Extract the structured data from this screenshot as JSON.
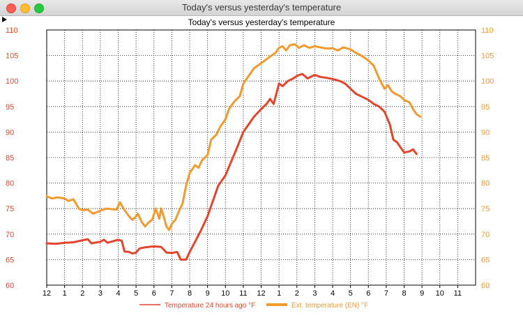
{
  "window": {
    "title": "Today's versus yesterday's temperature"
  },
  "chart_data": {
    "type": "line",
    "title": "Today's versus yesterday's temperature",
    "x_ticks": [
      "12",
      "1",
      "2",
      "3",
      "4",
      "5",
      "6",
      "7",
      "8",
      "9",
      "10",
      "11",
      "12",
      "1",
      "2",
      "3",
      "4",
      "5",
      "6",
      "7",
      "8",
      "9",
      "10",
      "11"
    ],
    "ylim": [
      60,
      110
    ],
    "y_ticks": [
      60,
      65,
      70,
      75,
      80,
      85,
      90,
      95,
      100,
      105,
      110
    ],
    "grid": true,
    "legend": "bottom",
    "series": [
      {
        "name": "Temperature 24 hours ago °F",
        "color": "#e2452d",
        "points": [
          [
            0,
            68.2
          ],
          [
            0.5,
            68.1
          ],
          [
            1,
            68.3
          ],
          [
            1.5,
            68.4
          ],
          [
            2,
            68.8
          ],
          [
            2.3,
            69.0
          ],
          [
            2.5,
            68.2
          ],
          [
            3,
            68.5
          ],
          [
            3.2,
            68.9
          ],
          [
            3.4,
            68.3
          ],
          [
            3.6,
            68.5
          ],
          [
            4,
            68.9
          ],
          [
            4.2,
            68.7
          ],
          [
            4.35,
            66.6
          ],
          [
            4.6,
            66.5
          ],
          [
            4.8,
            66.2
          ],
          [
            5,
            66.4
          ],
          [
            5.2,
            67.2
          ],
          [
            5.5,
            67.4
          ],
          [
            6,
            67.6
          ],
          [
            6.4,
            67.5
          ],
          [
            6.7,
            66.4
          ],
          [
            7,
            66.3
          ],
          [
            7.3,
            66.5
          ],
          [
            7.5,
            65.0
          ],
          [
            7.8,
            65.0
          ],
          [
            8,
            66.5
          ],
          [
            8.3,
            68.5
          ],
          [
            8.6,
            70.5
          ],
          [
            9,
            73.5
          ],
          [
            9.3,
            76.5
          ],
          [
            9.6,
            79.5
          ],
          [
            10,
            81.5
          ],
          [
            10.3,
            84.0
          ],
          [
            10.6,
            86.5
          ],
          [
            11,
            90.0
          ],
          [
            11.3,
            91.5
          ],
          [
            11.6,
            93.0
          ],
          [
            12,
            94.5
          ],
          [
            12.3,
            95.5
          ],
          [
            12.5,
            96.5
          ],
          [
            12.7,
            95.5
          ],
          [
            13,
            99.5
          ],
          [
            13.2,
            99.0
          ],
          [
            13.5,
            100.0
          ],
          [
            13.8,
            100.5
          ],
          [
            14,
            101.0
          ],
          [
            14.3,
            101.4
          ],
          [
            14.6,
            100.5
          ],
          [
            15,
            101.2
          ],
          [
            15.3,
            100.8
          ],
          [
            15.7,
            100.6
          ],
          [
            16,
            100.4
          ],
          [
            16.4,
            100.0
          ],
          [
            16.7,
            99.5
          ],
          [
            17,
            98.5
          ],
          [
            17.3,
            97.5
          ],
          [
            17.6,
            97.0
          ],
          [
            18,
            96.3
          ],
          [
            18.3,
            95.5
          ],
          [
            18.6,
            95.0
          ],
          [
            18.9,
            94.0
          ],
          [
            19.2,
            91.5
          ],
          [
            19.4,
            88.5
          ],
          [
            19.6,
            88.0
          ],
          [
            19.8,
            87.0
          ],
          [
            20,
            86.0
          ],
          [
            20.3,
            86.2
          ],
          [
            20.5,
            86.6
          ],
          [
            20.7,
            85.7
          ]
        ]
      },
      {
        "name": "Ext. temperature (EN) °F",
        "color": "#f09a30",
        "points": [
          [
            0,
            77.4
          ],
          [
            0.3,
            77.0
          ],
          [
            0.6,
            77.2
          ],
          [
            1,
            77.0
          ],
          [
            1.2,
            76.5
          ],
          [
            1.5,
            76.8
          ],
          [
            1.8,
            75.0
          ],
          [
            2,
            74.7
          ],
          [
            2.3,
            74.8
          ],
          [
            2.6,
            74.0
          ],
          [
            3,
            74.6
          ],
          [
            3.3,
            75.0
          ],
          [
            3.6,
            74.9
          ],
          [
            3.9,
            74.8
          ],
          [
            4.1,
            76.2
          ],
          [
            4.3,
            75.0
          ],
          [
            4.6,
            73.5
          ],
          [
            4.8,
            72.8
          ],
          [
            5,
            73.5
          ],
          [
            5.1,
            74.0
          ],
          [
            5.3,
            72.5
          ],
          [
            5.5,
            71.5
          ],
          [
            5.7,
            72.3
          ],
          [
            5.9,
            72.8
          ],
          [
            6.1,
            75.0
          ],
          [
            6.3,
            73.0
          ],
          [
            6.4,
            75.0
          ],
          [
            6.5,
            74.0
          ],
          [
            6.7,
            71.5
          ],
          [
            6.85,
            70.8
          ],
          [
            7,
            72.0
          ],
          [
            7.2,
            72.8
          ],
          [
            7.4,
            74.5
          ],
          [
            7.6,
            76.0
          ],
          [
            7.8,
            79.5
          ],
          [
            8,
            82.0
          ],
          [
            8.3,
            83.5
          ],
          [
            8.5,
            83.0
          ],
          [
            8.7,
            84.5
          ],
          [
            9,
            85.5
          ],
          [
            9.2,
            88.5
          ],
          [
            9.5,
            89.5
          ],
          [
            9.7,
            91.0
          ],
          [
            10,
            92.5
          ],
          [
            10.2,
            94.5
          ],
          [
            10.5,
            96.0
          ],
          [
            10.8,
            97.0
          ],
          [
            11,
            99.5
          ],
          [
            11.3,
            101.0
          ],
          [
            11.6,
            102.5
          ],
          [
            12,
            103.5
          ],
          [
            12.2,
            104.0
          ],
          [
            12.5,
            104.8
          ],
          [
            12.8,
            105.5
          ],
          [
            13,
            106.5
          ],
          [
            13.2,
            106.8
          ],
          [
            13.4,
            106.0
          ],
          [
            13.6,
            107.0
          ],
          [
            13.9,
            107.2
          ],
          [
            14.1,
            106.5
          ],
          [
            14.4,
            107.0
          ],
          [
            14.7,
            106.5
          ],
          [
            15,
            106.8
          ],
          [
            15.3,
            106.6
          ],
          [
            15.6,
            106.4
          ],
          [
            16,
            106.4
          ],
          [
            16.3,
            106.0
          ],
          [
            16.6,
            106.6
          ],
          [
            17,
            106.2
          ],
          [
            17.3,
            105.5
          ],
          [
            17.6,
            105.0
          ],
          [
            18,
            104.0
          ],
          [
            18.3,
            103.0
          ],
          [
            18.6,
            100.5
          ],
          [
            18.9,
            98.5
          ],
          [
            19.1,
            99.2
          ],
          [
            19.3,
            98.0
          ],
          [
            19.5,
            97.5
          ],
          [
            19.8,
            97.0
          ],
          [
            20,
            96.3
          ],
          [
            20.3,
            95.8
          ],
          [
            20.5,
            94.5
          ],
          [
            20.7,
            93.5
          ],
          [
            20.9,
            93.0
          ]
        ]
      }
    ]
  }
}
